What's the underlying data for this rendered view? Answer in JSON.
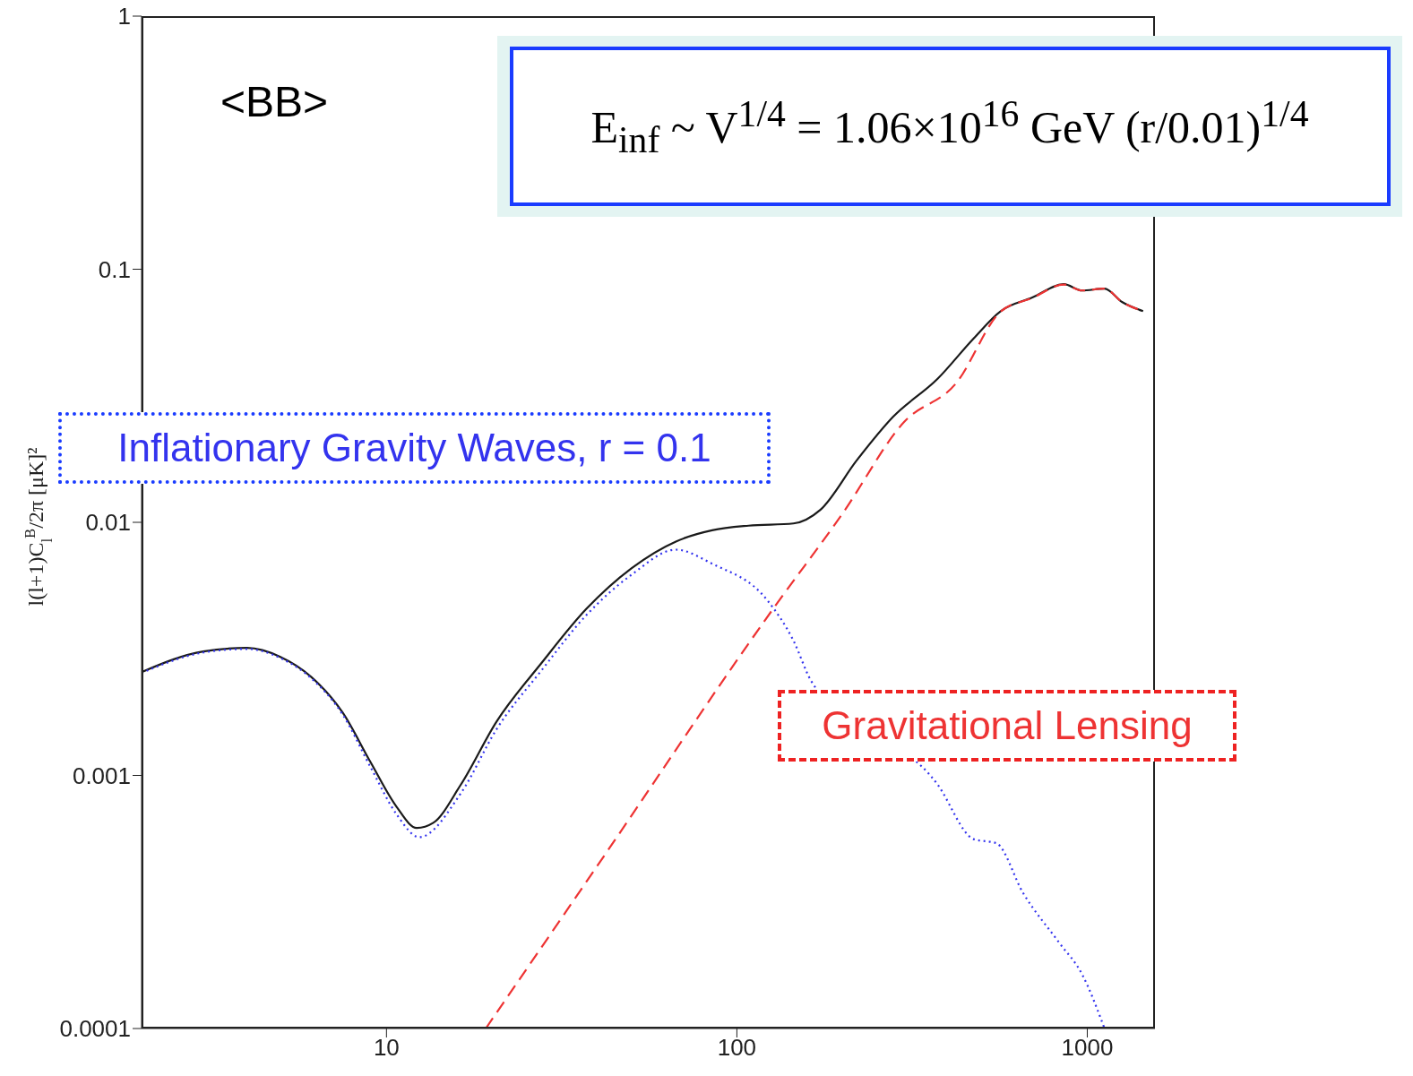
{
  "chart_data": {
    "type": "line",
    "ylabel": "l(l+1)C$_{l}$$^{B}$/2π [μK]²",
    "xlim": [
      2,
      1560
    ],
    "xticks": [
      10,
      100,
      1000
    ],
    "ylim": [
      0.0001,
      1
    ],
    "yticks": [
      0.0001,
      0.001,
      0.01,
      0.1,
      1
    ],
    "log": "xy",
    "annotations": [
      "<BB>",
      "E$_{inf}$ ~ V$^{1/4}$ = 1.06×10$^{16}$ GeV (r/0.01)$^{1/4}$"
    ],
    "series": [
      {
        "color": "#1a1a1a",
        "line_style": "solid",
        "x": [
          2,
          3,
          4,
          4.98,
          6.1,
          7.5,
          9,
          10.7,
          12.2,
          13.6,
          16.3,
          20.6,
          27.7,
          37.2,
          50,
          67,
          85,
          108,
          145,
          173,
          220,
          279,
          374,
          474,
          566,
          697,
          857,
          966,
          1119,
          1259,
          1443
        ],
        "values": [
          0.00256,
          0.00309,
          0.00319,
          0.00294,
          0.00245,
          0.00177,
          0.00113,
          0.00075,
          0.00062,
          0.00065,
          0.00092,
          0.00163,
          0.00278,
          0.00455,
          0.00658,
          0.0084,
          0.0093,
          0.0097,
          0.0099,
          0.0112,
          0.0176,
          0.0261,
          0.0369,
          0.0533,
          0.0683,
          0.0773,
          0.0873,
          0.0824,
          0.0838,
          0.0741,
          0.0683
        ]
      },
      {
        "name": "Inflationary Gravity Waves, r = 0.1",
        "color": "#3333ee",
        "line_style": "dotted",
        "x": [
          2,
          3,
          4,
          4.98,
          6.1,
          7.5,
          9,
          10.7,
          12.4,
          16.3,
          20.6,
          27.7,
          37.2,
          50,
          67,
          85,
          122,
          145,
          163,
          374,
          474,
          550,
          656,
          832,
          966,
          1120
        ],
        "values": [
          0.00254,
          0.00306,
          0.00316,
          0.00291,
          0.00242,
          0.00174,
          0.00108,
          0.0007,
          0.00057,
          0.00085,
          0.00152,
          0.0026,
          0.0043,
          0.0062,
          0.0078,
          0.00686,
          0.00493,
          0.00341,
          0.00236,
          0.00092,
          0.00056,
          0.00054,
          0.000343,
          0.000218,
          0.000164,
          0.0001
        ]
      },
      {
        "name": "Gravitational Lensing",
        "color": "#ee3333",
        "line_style": "dashed",
        "x": [
          19.2,
          40,
          129,
          200,
          300,
          422,
          566,
          697,
          857,
          966,
          1119,
          1259,
          1443
        ],
        "values": [
          0.0001,
          0.00044,
          0.0047,
          0.0108,
          0.0249,
          0.0354,
          0.068,
          0.077,
          0.087,
          0.0824,
          0.0838,
          0.0741,
          0.0683
        ]
      }
    ]
  }
}
